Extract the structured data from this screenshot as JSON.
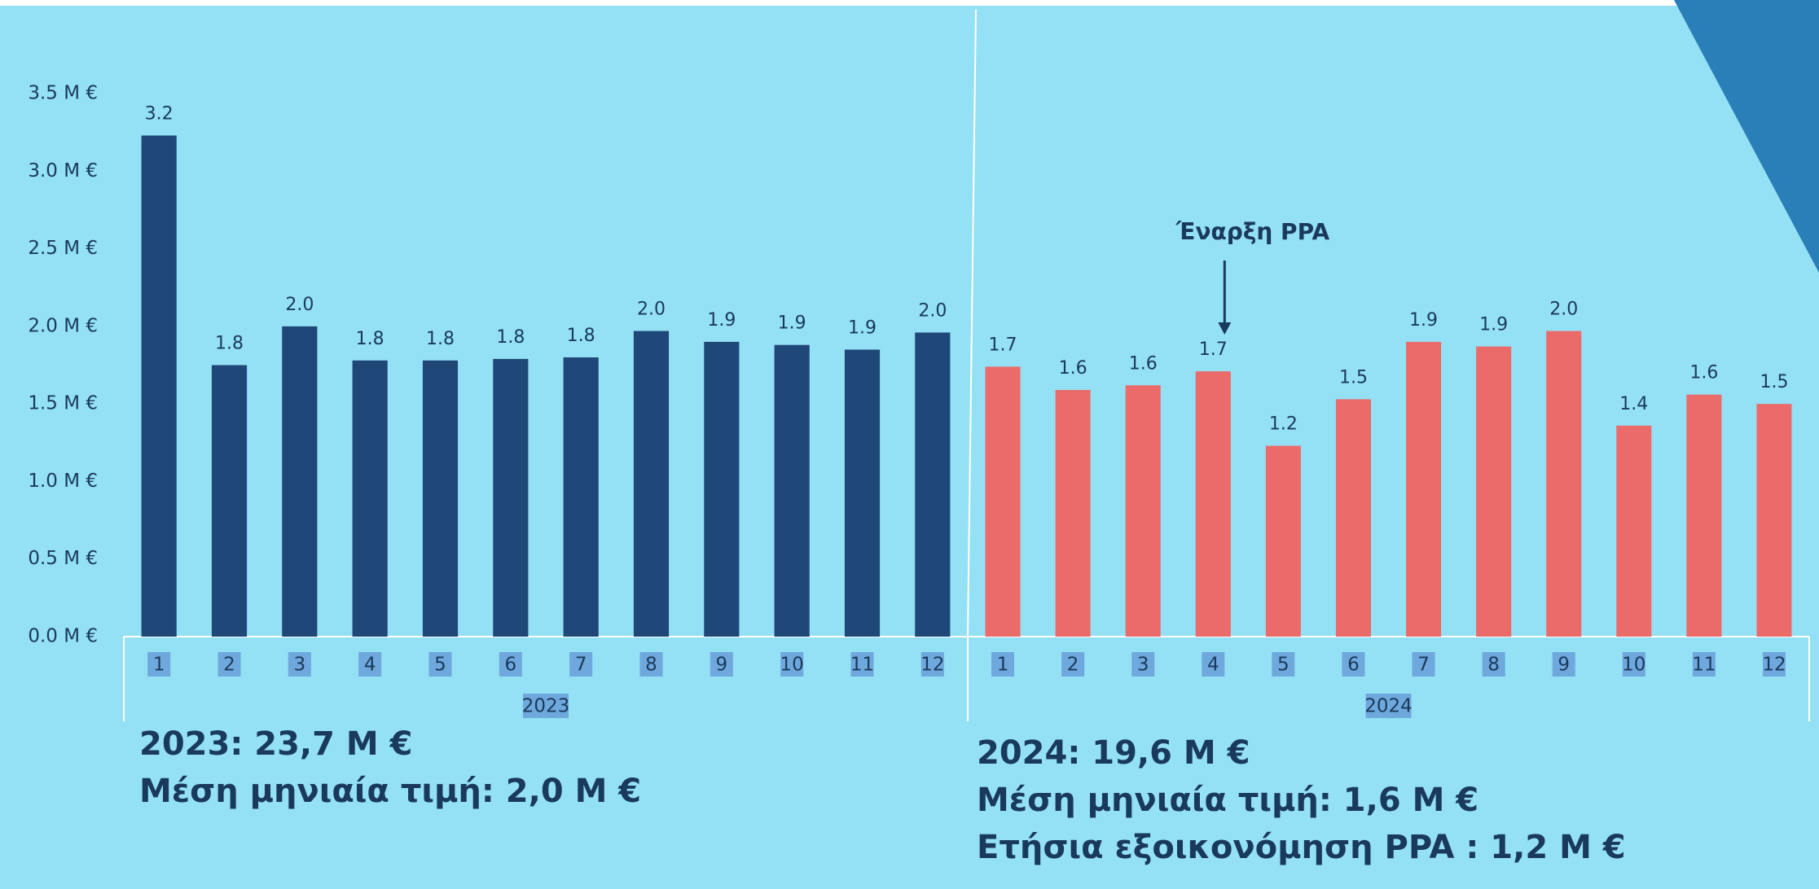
{
  "chart_data": {
    "type": "bar",
    "categories": [
      "1",
      "2",
      "3",
      "4",
      "5",
      "6",
      "7",
      "8",
      "9",
      "10",
      "11",
      "12"
    ],
    "series": [
      {
        "name": "2023",
        "color": "#1f4778",
        "values": [
          3.23,
          1.75,
          2.0,
          1.78,
          1.78,
          1.79,
          1.8,
          1.97,
          1.9,
          1.88,
          1.85,
          1.96
        ],
        "value_labels": [
          "3.2",
          "1.8",
          "2.0",
          "1.8",
          "1.8",
          "1.8",
          "1.8",
          "2.0",
          "1.9",
          "1.9",
          "1.9",
          "2.0"
        ]
      },
      {
        "name": "2024",
        "color": "#eb6b6b",
        "values": [
          1.74,
          1.59,
          1.62,
          1.71,
          1.23,
          1.53,
          1.9,
          1.87,
          1.97,
          1.36,
          1.56,
          1.5
        ],
        "value_labels": [
          "1.7",
          "1.6",
          "1.6",
          "1.7",
          "1.2",
          "1.5",
          "1.9",
          "1.9",
          "2.0",
          "1.4",
          "1.6",
          "1.5"
        ]
      }
    ],
    "ylim": [
      0,
      3.5
    ],
    "yticks": [
      {
        "value": 0,
        "label": "0.0 M €"
      },
      {
        "value": 0.5,
        "label": "0.5 M €"
      },
      {
        "value": 1,
        "label": "1.0 M €"
      },
      {
        "value": 1.5,
        "label": "1.5 M €"
      },
      {
        "value": 2,
        "label": "2.0 M €"
      },
      {
        "value": 2.5,
        "label": "2.5 M €"
      },
      {
        "value": 3,
        "label": "3.0 M €"
      },
      {
        "value": 3.5,
        "label": "3.5 M €"
      }
    ],
    "annotation": "Έναρξη PPA",
    "summaries": [
      [
        "2023: 23,7 M €",
        "Μέση μηνιαία τιμή: 2,0 M €"
      ],
      [
        "2024: 19,6 M €",
        "Μέση μηνιαία τιμή: 1,6 M €",
        "Ετήσια εξοικονόμηση PPA : 1,2 M €"
      ]
    ]
  }
}
